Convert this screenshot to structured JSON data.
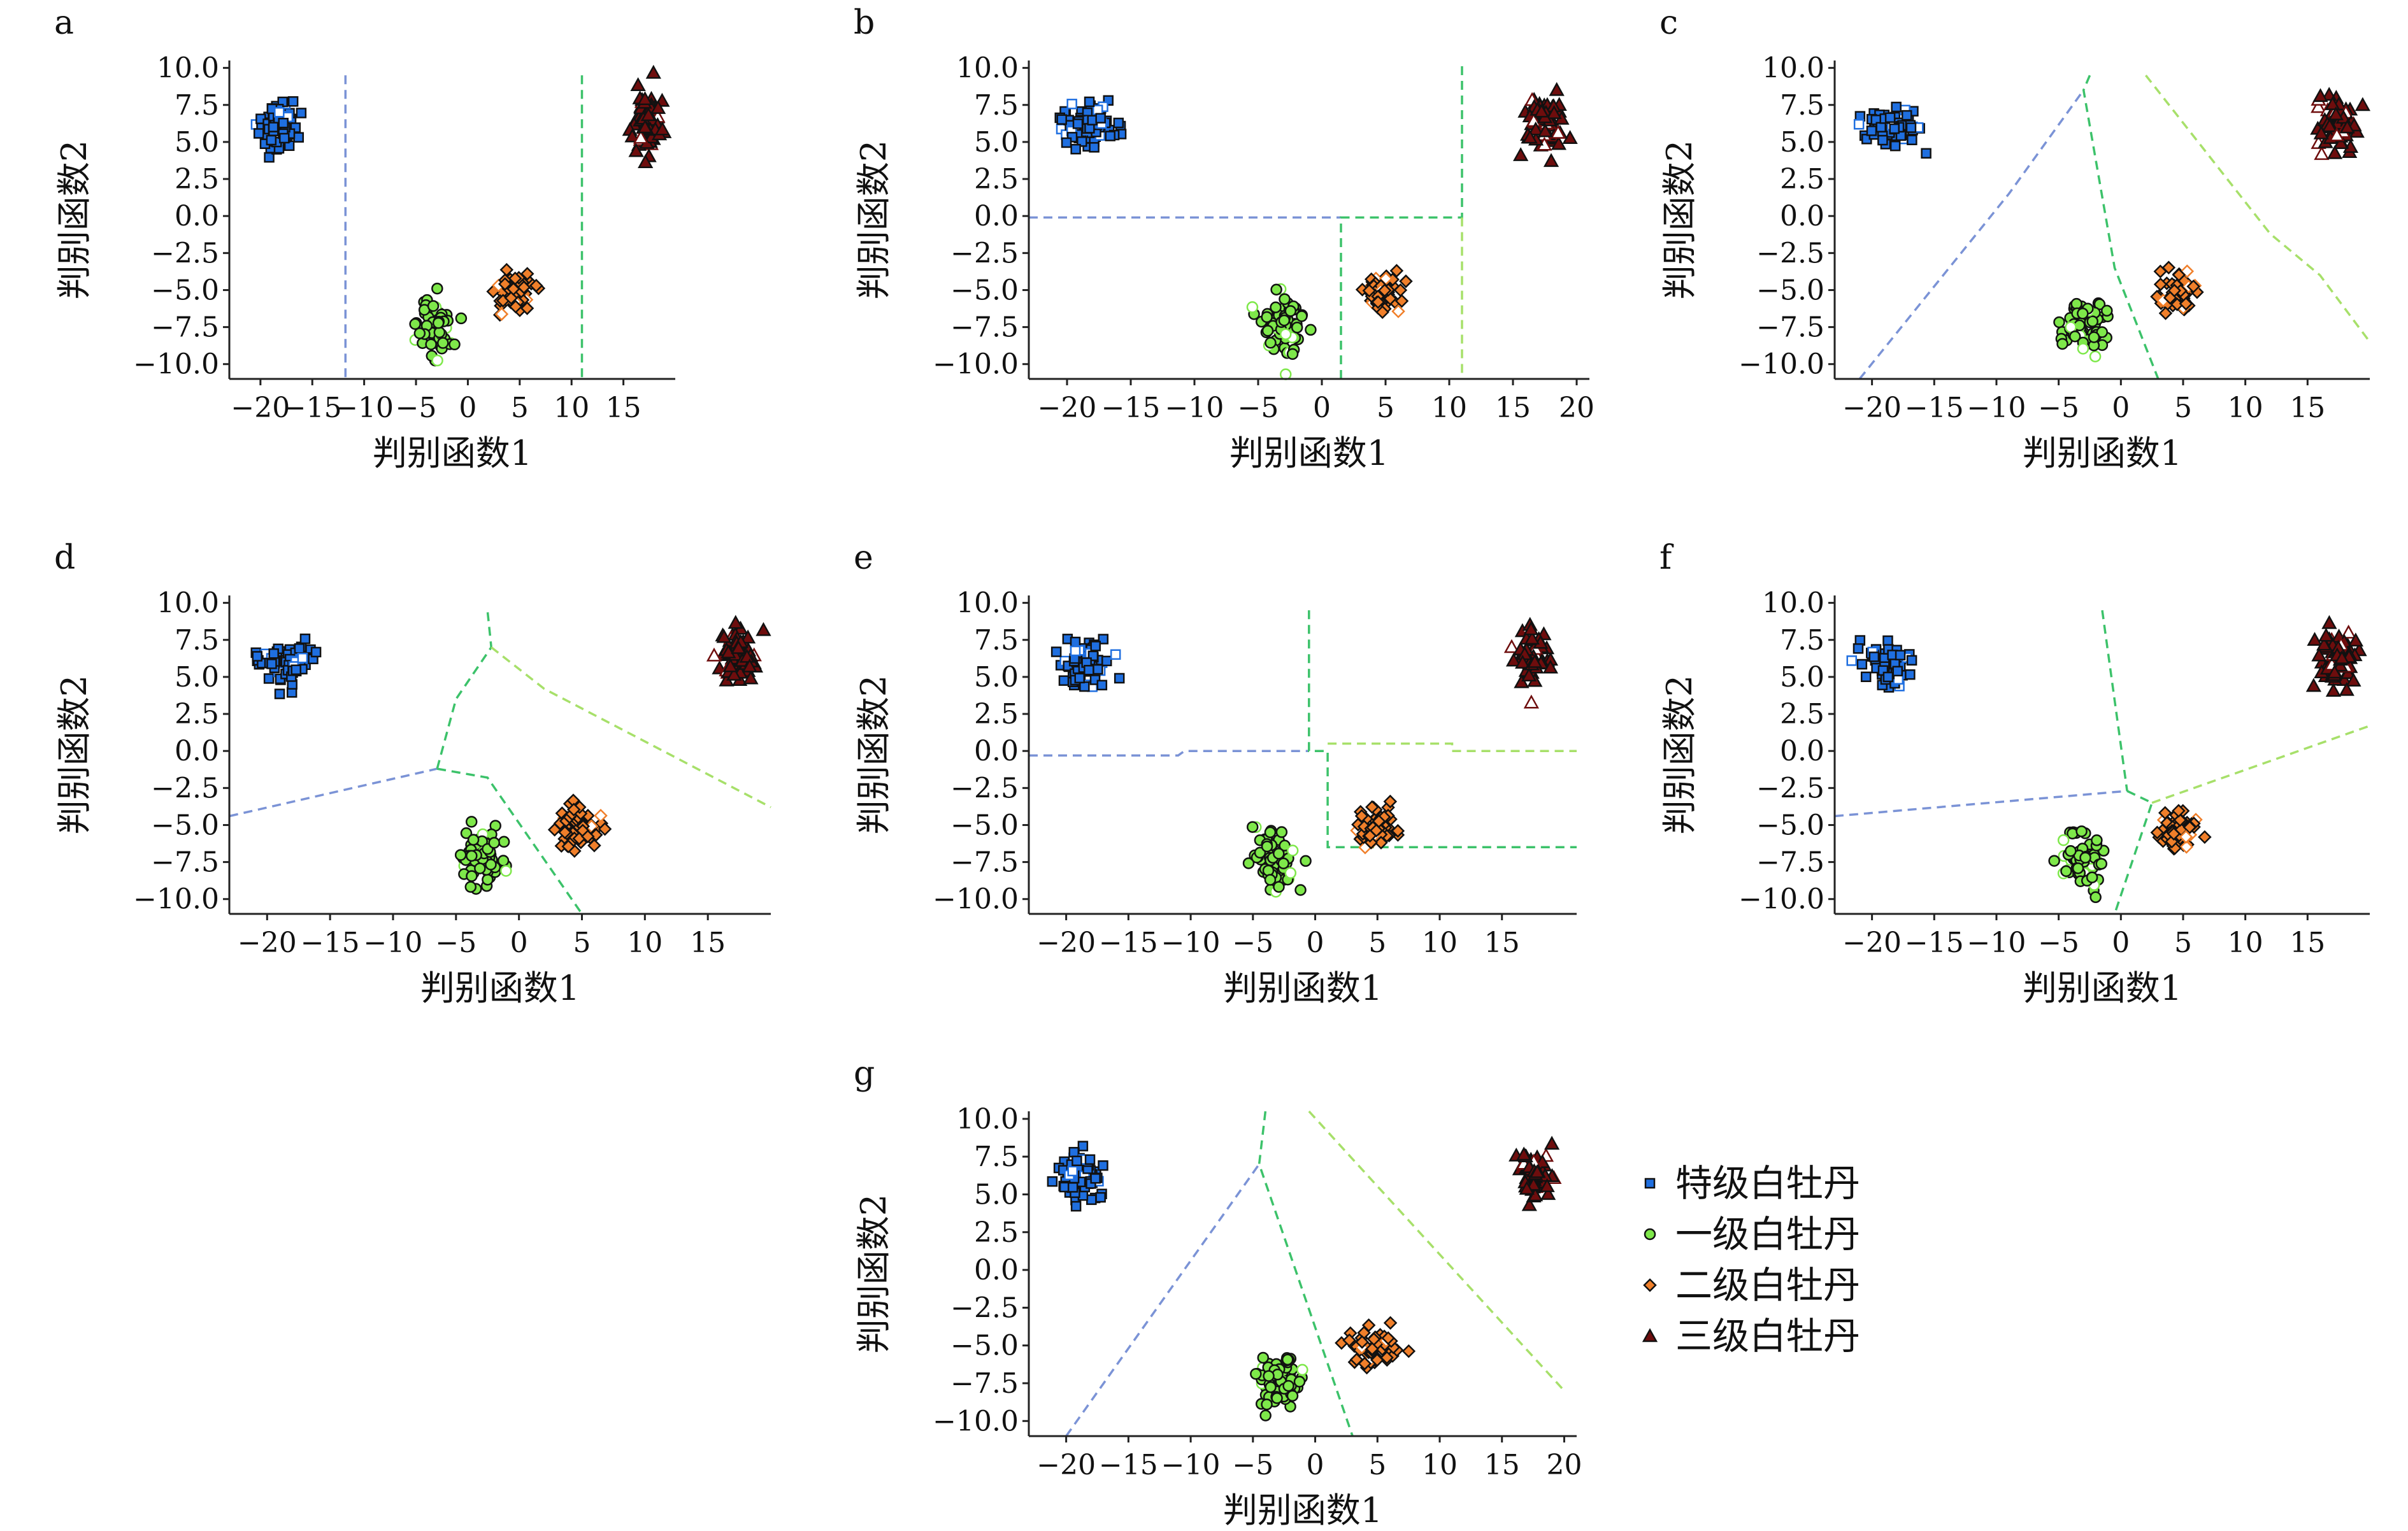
{
  "figure": {
    "legend_position": "right of panel g"
  },
  "colors": {
    "class_1": "#1f6fe0",
    "class_2": "#7ee84a",
    "class_3": "#f07f2a",
    "class_4": "#6e0d0d",
    "marker_edge": "#111111",
    "boundary_blue": "#7b93d6",
    "boundary_green": "#3cc26a",
    "boundary_light": "#a7e06a"
  },
  "legend": [
    {
      "label": "特级白牡丹",
      "marker": "square",
      "color_key": "class_1"
    },
    {
      "label": "一级白牡丹",
      "marker": "circle",
      "color_key": "class_2"
    },
    {
      "label": "二级白牡丹",
      "marker": "diamond",
      "color_key": "class_3"
    },
    {
      "label": "三级白牡丹",
      "marker": "triangle",
      "color_key": "class_4"
    }
  ],
  "clusters": [
    {
      "name": "特级白牡丹",
      "marker": "square",
      "color_key": "class_1",
      "center": [
        -18.5,
        6.0
      ],
      "spread": [
        1.4,
        1.0
      ],
      "n": 70
    },
    {
      "name": "一级白牡丹",
      "marker": "circle",
      "color_key": "class_2",
      "center": [
        -3.0,
        -7.3
      ],
      "spread": [
        1.3,
        1.2
      ],
      "n": 70
    },
    {
      "name": "二级白牡丹",
      "marker": "diamond",
      "color_key": "class_3",
      "center": [
        4.7,
        -5.2
      ],
      "spread": [
        1.2,
        0.9
      ],
      "n": 60
    },
    {
      "name": "三级白牡丹",
      "marker": "triangle",
      "color_key": "class_4",
      "center": [
        17.4,
        6.3
      ],
      "spread": [
        1.0,
        1.2
      ],
      "n": 65
    }
  ],
  "chart_data": [
    {
      "panel": "a",
      "type": "scatter",
      "xlabel": "判别函数1",
      "ylabel": "判别函数2",
      "xlim": [
        -23,
        20
      ],
      "ylim": [
        -11,
        10.5
      ],
      "xticks": [
        -20,
        -15,
        -10,
        -5,
        0,
        5,
        10,
        15
      ],
      "xtick_labels": [
        "−20",
        "−15",
        "−10",
        "−5",
        "0",
        "5",
        "10",
        "15"
      ],
      "yticks": [
        10,
        7.5,
        5,
        2.5,
        0,
        -2.5,
        -5,
        -7.5,
        -10
      ],
      "ytick_labels": [
        "10.0",
        "7.5",
        "5.0",
        "2.5",
        "0.0",
        "−2.5",
        "−5.0",
        "−7.5",
        "−10.0"
      ],
      "boundaries": [
        {
          "color_key": "boundary_blue",
          "points": [
            [
              -11.8,
              9.5
            ],
            [
              -11.8,
              -11
            ]
          ]
        },
        {
          "color_key": "boundary_green",
          "points": [
            [
              11,
              9.5
            ],
            [
              11,
              -11
            ]
          ]
        }
      ]
    },
    {
      "panel": "b",
      "type": "scatter",
      "xlabel": "判别函数1",
      "ylabel": "判别函数2",
      "xlim": [
        -23,
        21
      ],
      "ylim": [
        -11,
        10.5
      ],
      "xticks": [
        -20,
        -15,
        -10,
        -5,
        0,
        5,
        10,
        15,
        20
      ],
      "xtick_labels": [
        "−20",
        "−15",
        "−10",
        "−5",
        "0",
        "5",
        "10",
        "15",
        "20"
      ],
      "yticks": [
        10,
        7.5,
        5,
        2.5,
        0,
        -2.5,
        -5,
        -7.5,
        -10
      ],
      "ytick_labels": [
        "10.0",
        "7.5",
        "5.0",
        "2.5",
        "0.0",
        "−2.5",
        "−5.0",
        "−7.5",
        "−10.0"
      ],
      "boundaries": [
        {
          "color_key": "boundary_blue",
          "points": [
            [
              -23,
              -0.1
            ],
            [
              1.5,
              -0.1
            ]
          ]
        },
        {
          "color_key": "boundary_green",
          "points": [
            [
              1.5,
              -11
            ],
            [
              1.5,
              -0.1
            ],
            [
              11,
              -0.1
            ],
            [
              11,
              10.5
            ]
          ]
        },
        {
          "color_key": "boundary_light",
          "points": [
            [
              11,
              -0.1
            ],
            [
              11,
              -11
            ]
          ]
        }
      ]
    },
    {
      "panel": "c",
      "type": "scatter",
      "xlabel": "判别函数1",
      "ylabel": "判别函数2",
      "xlim": [
        -23,
        20
      ],
      "ylim": [
        -11,
        10.5
      ],
      "xticks": [
        -20,
        -15,
        -10,
        -5,
        0,
        5,
        10,
        15
      ],
      "xtick_labels": [
        "−20",
        "−15",
        "−10",
        "−5",
        "0",
        "5",
        "10",
        "15"
      ],
      "yticks": [
        10,
        7.5,
        5,
        2.5,
        0,
        -2.5,
        -5,
        -7.5,
        -10
      ],
      "ytick_labels": [
        "10.0",
        "7.5",
        "5.0",
        "2.5",
        "0.0",
        "−2.5",
        "−5.0",
        "−7.5",
        "−10.0"
      ],
      "boundaries": [
        {
          "color_key": "boundary_blue",
          "points": [
            [
              -21,
              -11
            ],
            [
              -9,
              1.5
            ],
            [
              -3,
              8.5
            ]
          ]
        },
        {
          "color_key": "boundary_green",
          "points": [
            [
              -2.5,
              9.5
            ],
            [
              -3,
              8.5
            ],
            [
              -0.5,
              -3.5
            ],
            [
              3,
              -11
            ]
          ]
        },
        {
          "color_key": "boundary_light",
          "points": [
            [
              2,
              9.5
            ],
            [
              12,
              -1.2
            ],
            [
              16,
              -4
            ],
            [
              20,
              -8.5
            ]
          ]
        }
      ]
    },
    {
      "panel": "d",
      "type": "scatter",
      "xlabel": "判别函数1",
      "ylabel": "判别函数2",
      "xlim": [
        -23,
        20
      ],
      "ylim": [
        -11,
        10.5
      ],
      "xticks": [
        -20,
        -15,
        -10,
        -5,
        0,
        5,
        10,
        15
      ],
      "xtick_labels": [
        "−20",
        "−15",
        "−10",
        "−5",
        "0",
        "5",
        "10",
        "15"
      ],
      "yticks": [
        10,
        7.5,
        5,
        2.5,
        0,
        -2.5,
        -5,
        -7.5,
        -10
      ],
      "ytick_labels": [
        "10.0",
        "7.5",
        "5.0",
        "2.5",
        "0.0",
        "−2.5",
        "−5.0",
        "−7.5",
        "−10.0"
      ],
      "boundaries": [
        {
          "color_key": "boundary_blue",
          "points": [
            [
              -23,
              -4.4
            ],
            [
              -6.5,
              -1.2
            ]
          ]
        },
        {
          "color_key": "boundary_green",
          "points": [
            [
              -6.5,
              -1.2
            ],
            [
              -5,
              3.5
            ],
            [
              -2.2,
              7
            ],
            [
              -2.5,
              9.5
            ]
          ]
        },
        {
          "color_key": "boundary_green",
          "points": [
            [
              -6.5,
              -1.2
            ],
            [
              -2.5,
              -1.8
            ],
            [
              5,
              -11
            ]
          ]
        },
        {
          "color_key": "boundary_light",
          "points": [
            [
              -2.2,
              7
            ],
            [
              2,
              4.2
            ],
            [
              20,
              -3.8
            ]
          ]
        }
      ]
    },
    {
      "panel": "e",
      "type": "scatter",
      "xlabel": "判别函数1",
      "ylabel": "判别函数2",
      "xlim": [
        -23,
        21
      ],
      "ylim": [
        -11,
        10.5
      ],
      "xticks": [
        -20,
        -15,
        -10,
        -5,
        0,
        5,
        10,
        15
      ],
      "xtick_labels": [
        "−20",
        "−15",
        "−10",
        "−5",
        "0",
        "5",
        "10",
        "15"
      ],
      "yticks": [
        10,
        7.5,
        5,
        2.5,
        0,
        -2.5,
        -5,
        -7.5,
        -10
      ],
      "ytick_labels": [
        "10.0",
        "7.5",
        "5.0",
        "2.5",
        "0.0",
        "−2.5",
        "−5.0",
        "−7.5",
        "−10.0"
      ],
      "boundaries": [
        {
          "color_key": "boundary_blue",
          "points": [
            [
              -23,
              -0.3
            ],
            [
              -11,
              -0.3
            ],
            [
              -10.5,
              0
            ],
            [
              -0.5,
              0
            ]
          ]
        },
        {
          "color_key": "boundary_green",
          "points": [
            [
              -0.5,
              9.5
            ],
            [
              -0.5,
              0
            ],
            [
              1,
              0
            ],
            [
              1,
              -6.5
            ],
            [
              21,
              -6.5
            ]
          ]
        },
        {
          "color_key": "boundary_light",
          "points": [
            [
              1,
              0.5
            ],
            [
              11,
              0.5
            ],
            [
              11,
              0
            ],
            [
              21,
              0
            ]
          ]
        }
      ]
    },
    {
      "panel": "f",
      "type": "scatter",
      "xlabel": "判别函数1",
      "ylabel": "判别函数2",
      "xlim": [
        -23,
        20
      ],
      "ylim": [
        -11,
        10.5
      ],
      "xticks": [
        -20,
        -15,
        -10,
        -5,
        0,
        5,
        10,
        15
      ],
      "xtick_labels": [
        "−20",
        "−15",
        "−10",
        "−5",
        "0",
        "5",
        "10",
        "15"
      ],
      "yticks": [
        10,
        7.5,
        5,
        2.5,
        0,
        -2.5,
        -5,
        -7.5,
        -10
      ],
      "ytick_labels": [
        "10.0",
        "7.5",
        "5.0",
        "2.5",
        "0.0",
        "−2.5",
        "−5.0",
        "−7.5",
        "−10.0"
      ],
      "boundaries": [
        {
          "color_key": "boundary_blue",
          "points": [
            [
              -23,
              -4.4
            ],
            [
              0.5,
              -2.7
            ]
          ]
        },
        {
          "color_key": "boundary_green",
          "points": [
            [
              -1.5,
              9.5
            ],
            [
              0.5,
              -2.7
            ]
          ]
        },
        {
          "color_key": "boundary_green",
          "points": [
            [
              0.5,
              -2.7
            ],
            [
              2.5,
              -3.5
            ],
            [
              -0.5,
              -11
            ]
          ]
        },
        {
          "color_key": "boundary_light",
          "points": [
            [
              2.5,
              -3.5
            ],
            [
              20,
              1.7
            ]
          ]
        }
      ]
    },
    {
      "panel": "g",
      "type": "scatter",
      "xlabel": "判别函数1",
      "ylabel": "判别函数2",
      "xlim": [
        -23,
        21
      ],
      "ylim": [
        -11,
        10.5
      ],
      "xticks": [
        -20,
        -15,
        -10,
        -5,
        0,
        5,
        10,
        15,
        20
      ],
      "xtick_labels": [
        "−20",
        "−15",
        "−10",
        "−5",
        "0",
        "5",
        "10",
        "15",
        "20"
      ],
      "yticks": [
        10,
        7.5,
        5,
        2.5,
        0,
        -2.5,
        -5,
        -7.5,
        -10
      ],
      "ytick_labels": [
        "10.0",
        "7.5",
        "5.0",
        "2.5",
        "0.0",
        "−2.5",
        "−5.0",
        "−7.5",
        "−10.0"
      ],
      "boundaries": [
        {
          "color_key": "boundary_blue",
          "points": [
            [
              -20,
              -11
            ],
            [
              -4.5,
              7
            ]
          ]
        },
        {
          "color_key": "boundary_green",
          "points": [
            [
              -4,
              10.5
            ],
            [
              -4.5,
              7
            ],
            [
              3,
              -11
            ]
          ]
        },
        {
          "color_key": "boundary_light",
          "points": [
            [
              -0.5,
              10.5
            ],
            [
              20,
              -8
            ]
          ]
        }
      ]
    }
  ]
}
